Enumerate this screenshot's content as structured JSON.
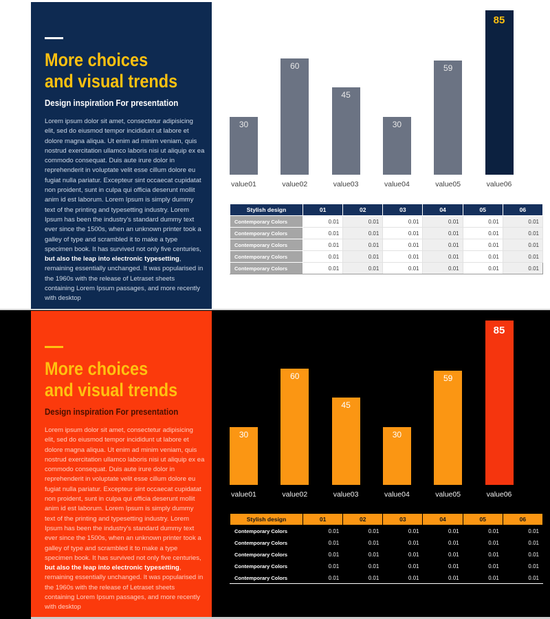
{
  "content": {
    "title_line1": "More choices",
    "title_line2": "and visual trends",
    "subtitle": "Design inspiration For presentation",
    "body": {
      "p1": "Lorem ipsum dolor sit amet, consectetur adipisicing elit, sed do eiusmod tempor incididunt ut labore et dolore magna aliqua. Ut enim ad minim veniam, quis nostrud exercitation ullamco laboris nisi ut aliquip ex ea commodo consequat. Duis aute irure dolor in reprehenderit in voluptate velit esse cillum dolore eu fugiat nulla pariatur. Excepteur sint occaecat cupidatat non proident, sunt in culpa qui officia deserunt mollit anim id est laborum. Lorem Ipsum is simply dummy text of the printing and typesetting industry. Lorem Ipsum has been the industry's standard dummy text ever since the 1500s, when an unknown printer took a galley of type and scrambled it to make a type specimen book. It has survived not only five centuries, ",
      "bold": "but also the leap into electronic typesetting",
      "p2": ", remaining essentially unchanged. It was popularised in the 1960s with the release of Letraset sheets containing Lorem Ipsum passages, and more recently with desktop"
    }
  },
  "chart_data": {
    "type": "bar",
    "categories": [
      "value01",
      "value02",
      "value03",
      "value04",
      "value05",
      "value06"
    ],
    "values": [
      30,
      60,
      45,
      30,
      59,
      85
    ],
    "highlight_index": 5,
    "title": "",
    "xlabel": "",
    "ylabel": "",
    "ylim": [
      0,
      90
    ],
    "grid": "off",
    "axes": "hidden",
    "data_labels": "inside-top of each bar",
    "renditions": [
      {
        "theme": "light",
        "background": "#ffffff",
        "bar_color": "#6b7383",
        "highlight_color": "#0c2140",
        "label_color": "#e8e8e8",
        "highlight_label_color": "#ffc110",
        "category_color": "#3f3f3f"
      },
      {
        "theme": "dark",
        "background": "#000000",
        "bar_color": "#fb9613",
        "highlight_color": "#f5350e",
        "label_color": "#ffffff",
        "highlight_label_color": "#ffffff",
        "category_color": "#f2f2f2"
      }
    ]
  },
  "table": {
    "header": [
      "Stylish design",
      "01",
      "02",
      "03",
      "04",
      "05",
      "06"
    ],
    "rows": [
      {
        "label": "Contemporary Colors",
        "values": [
          "0.01",
          "0.01",
          "0.01",
          "0.01",
          "0.01",
          "0.01"
        ]
      },
      {
        "label": "Contemporary Colors",
        "values": [
          "0.01",
          "0.01",
          "0.01",
          "0.01",
          "0.01",
          "0.01"
        ]
      },
      {
        "label": "Contemporary Colors",
        "values": [
          "0.01",
          "0.01",
          "0.01",
          "0.01",
          "0.01",
          "0.01"
        ]
      },
      {
        "label": "Contemporary Colors",
        "values": [
          "0.01",
          "0.01",
          "0.01",
          "0.01",
          "0.01",
          "0.01"
        ]
      },
      {
        "label": "Contemporary Colors",
        "values": [
          "0.01",
          "0.01",
          "0.01",
          "0.01",
          "0.01",
          "0.01"
        ]
      }
    ]
  },
  "theme_colors": {
    "light": {
      "slide_bg": "#ffffff",
      "panel_bg": "#0e2a51",
      "title": "#ffc110",
      "subtitle": "#ffffff",
      "accent_dash": "#ffffff",
      "table_header_bg": "#15305c",
      "row_label_bg": "#a6a6a6"
    },
    "dark": {
      "slide_bg": "#000000",
      "panel_bg": "#fb3a0c",
      "title": "#ffc110",
      "subtitle": "#4a1000",
      "accent_dash": "#ffc110",
      "table_header_bg": "#fb9613",
      "row_label_bg": "#000000"
    },
    "divider": "#d6d6d6",
    "bottom_strip": "#cdcdcd"
  }
}
